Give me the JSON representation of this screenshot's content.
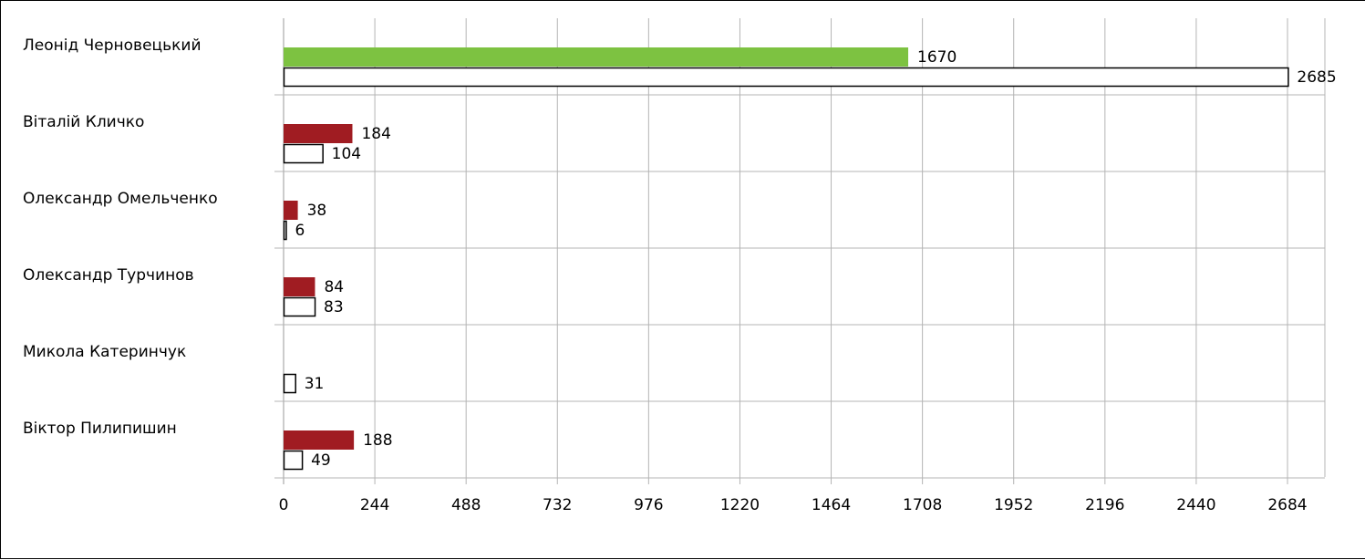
{
  "chart_data": {
    "type": "bar",
    "orientation": "horizontal",
    "categories": [
      "Леонід Черновецький",
      "Віталій Кличко",
      "Олександр Омельченко",
      "Олександр Турчинов",
      "Микола Катеринчук",
      "Віктор Пилипишин"
    ],
    "series": [
      {
        "values": [
          1670,
          184,
          38,
          84,
          null,
          188
        ],
        "color": "#a01c22",
        "highlight_color": "#7dc241"
      },
      {
        "values": [
          2685,
          104,
          6,
          83,
          31,
          49
        ],
        "color": "#ffffff",
        "stroke": "#000000"
      }
    ],
    "xlim": [
      0,
      2684
    ],
    "xticks": [
      0,
      244,
      488,
      732,
      976,
      1220,
      1464,
      1708,
      1952,
      2196,
      2440,
      2684
    ],
    "grid": true,
    "title": "",
    "xlabel": "",
    "ylabel": ""
  }
}
